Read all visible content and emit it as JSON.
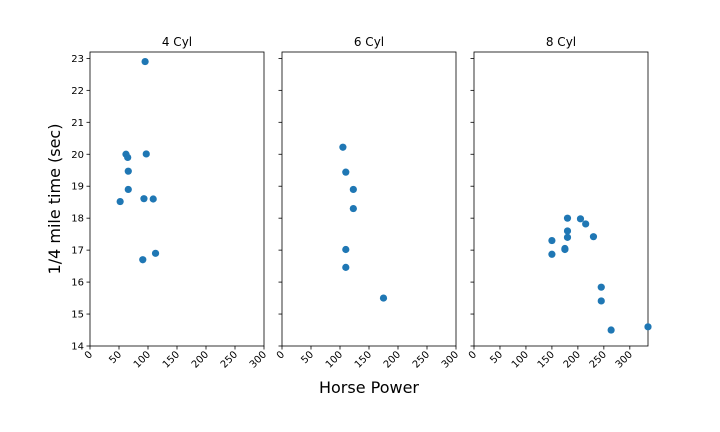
{
  "chart_data": {
    "type": "scatter",
    "xlabel": "Horse Power",
    "ylabel": "1/4 mile time (sec)",
    "ylim": [
      14,
      23.2
    ],
    "yticks": [
      14,
      15,
      16,
      17,
      18,
      19,
      20,
      21,
      22,
      23
    ],
    "grid": false,
    "color": "#1f77b4",
    "panels": [
      {
        "title": "4 Cyl",
        "xlim": [
          0,
          300
        ],
        "xticks": [
          0,
          50,
          100,
          150,
          200,
          250,
          300
        ],
        "x": [
          93,
          62,
          95,
          66,
          52,
          65,
          97,
          66,
          91,
          113,
          109
        ],
        "y": [
          18.61,
          20.0,
          22.9,
          19.47,
          18.52,
          19.9,
          20.01,
          18.9,
          16.7,
          16.9,
          18.6
        ]
      },
      {
        "title": "6 Cyl",
        "xlim": [
          0,
          300
        ],
        "xticks": [
          0,
          50,
          100,
          150,
          200,
          250,
          300
        ],
        "x": [
          110,
          110,
          110,
          105,
          123,
          123,
          175
        ],
        "y": [
          16.46,
          17.02,
          19.44,
          20.22,
          18.3,
          18.9,
          15.5
        ]
      },
      {
        "title": "8 Cyl",
        "xlim": [
          0,
          335
        ],
        "xticks": [
          0,
          50,
          100,
          150,
          200,
          250,
          300
        ],
        "x": [
          175,
          245,
          180,
          180,
          180,
          205,
          215,
          230,
          150,
          150,
          245,
          175,
          264,
          335
        ],
        "y": [
          17.02,
          15.84,
          17.4,
          17.6,
          18.0,
          17.98,
          17.82,
          17.42,
          16.87,
          17.3,
          15.41,
          17.05,
          14.5,
          14.6
        ]
      }
    ]
  }
}
